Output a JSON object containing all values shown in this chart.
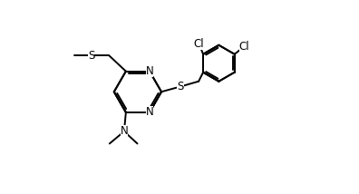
{
  "bg_color": "#ffffff",
  "line_color": "#000000",
  "line_width": 1.4,
  "font_size": 8.5,
  "xlim": [
    0,
    10
  ],
  "ylim": [
    0,
    5.5
  ],
  "figsize": [
    3.96,
    2.14
  ],
  "dpi": 100
}
